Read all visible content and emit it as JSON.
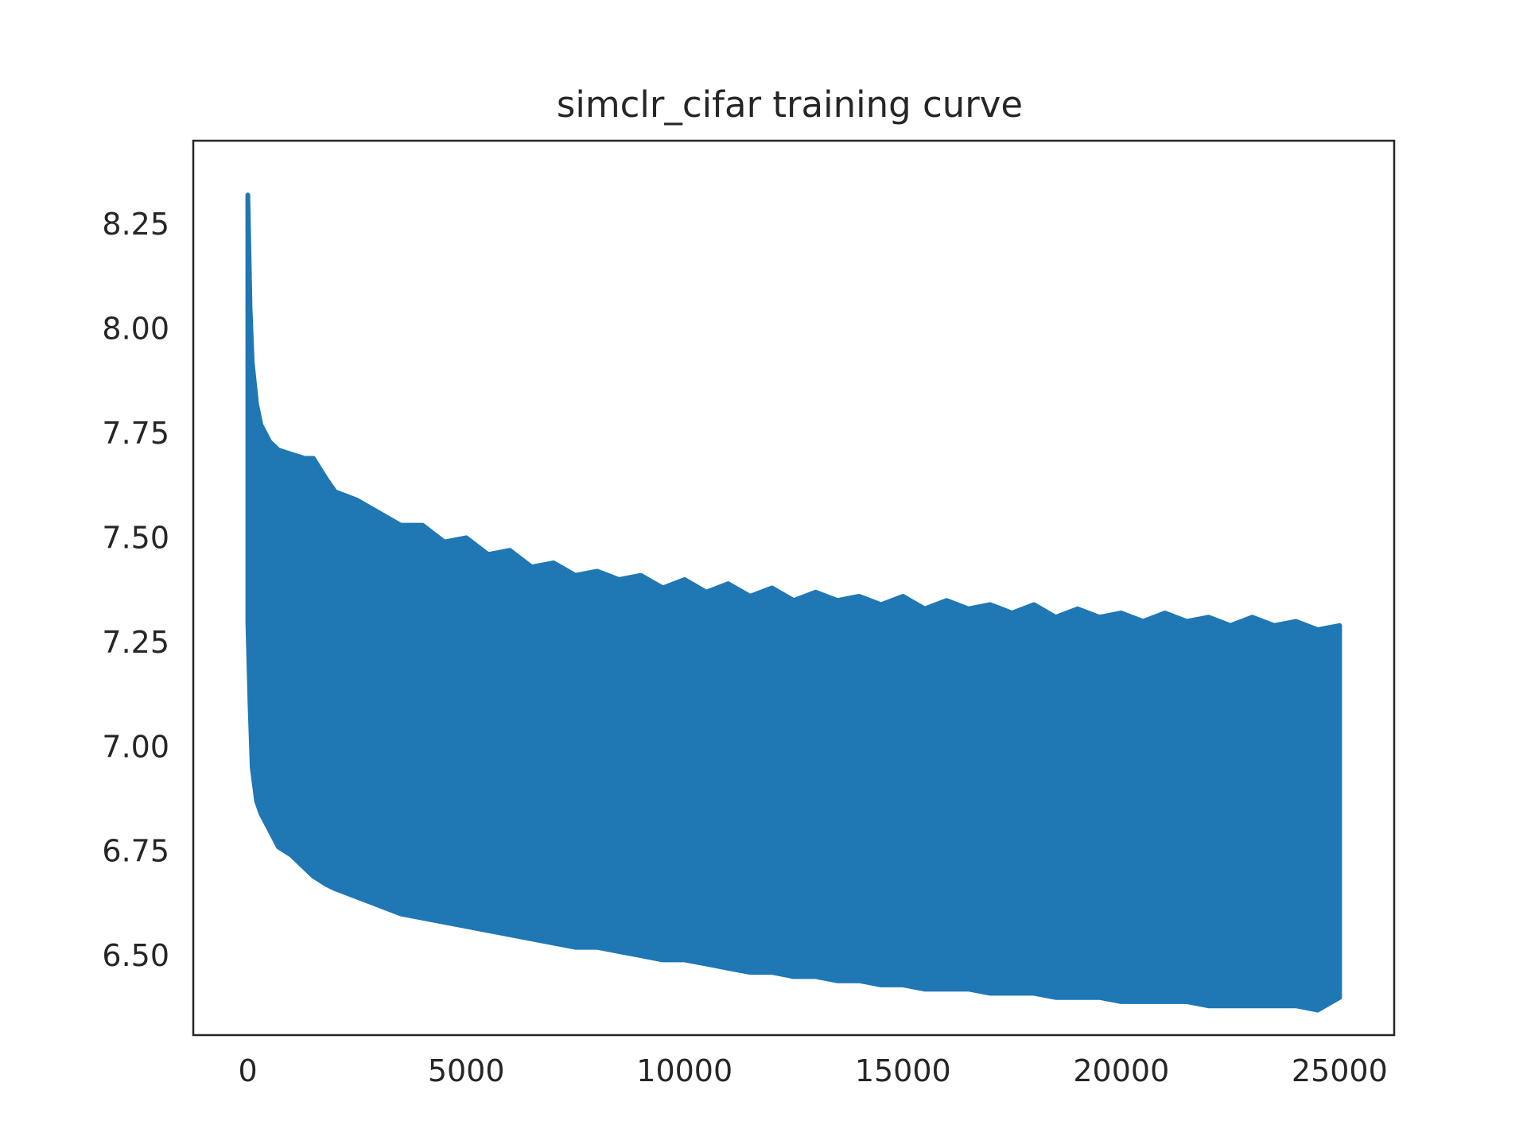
{
  "chart_data": {
    "type": "line",
    "title": "simclr_cifar training curve",
    "xlabel": "",
    "ylabel": "",
    "xlim": [
      -1250,
      26250
    ],
    "ylim": [
      6.31,
      8.45
    ],
    "xticks": [
      0,
      5000,
      10000,
      15000,
      20000,
      25000
    ],
    "xtick_labels": [
      "0",
      "5000",
      "10000",
      "15000",
      "20000",
      "25000"
    ],
    "yticks": [
      6.5,
      6.75,
      7.0,
      7.25,
      7.5,
      7.75,
      8.0,
      8.25
    ],
    "ytick_labels": [
      "6.50",
      "6.75",
      "7.00",
      "7.25",
      "7.50",
      "7.75",
      "8.00",
      "8.25"
    ],
    "grid": false,
    "legend": "none",
    "series": [
      {
        "color": "#1f77b4",
        "style": "dense oscillating loss curve filling band between lower and upper envelopes",
        "x": [
          0,
          50,
          100,
          200,
          300,
          500,
          700,
          1000,
          1300,
          1500,
          1800,
          2000,
          2500,
          3000,
          3500,
          4000,
          4500,
          5000,
          5500,
          6000,
          6500,
          7000,
          7500,
          8000,
          8500,
          9000,
          9500,
          10000,
          10500,
          11000,
          11500,
          12000,
          12500,
          13000,
          13500,
          14000,
          14500,
          15000,
          15500,
          16000,
          16500,
          17000,
          17500,
          18000,
          18500,
          19000,
          19500,
          20000,
          20500,
          21000,
          21500,
          22000,
          22500,
          23000,
          23500,
          24000,
          24500,
          25000
        ],
        "upper": [
          8.32,
          8.05,
          7.92,
          7.82,
          7.77,
          7.73,
          7.71,
          7.7,
          7.69,
          7.69,
          7.64,
          7.61,
          7.59,
          7.56,
          7.53,
          7.53,
          7.49,
          7.5,
          7.46,
          7.47,
          7.43,
          7.44,
          7.41,
          7.42,
          7.4,
          7.41,
          7.38,
          7.4,
          7.37,
          7.39,
          7.36,
          7.38,
          7.35,
          7.37,
          7.35,
          7.36,
          7.34,
          7.36,
          7.33,
          7.35,
          7.33,
          7.34,
          7.32,
          7.34,
          7.31,
          7.33,
          7.31,
          7.32,
          7.3,
          7.32,
          7.3,
          7.31,
          7.29,
          7.31,
          7.29,
          7.3,
          7.28,
          7.29
        ],
        "lower": [
          7.3,
          7.1,
          6.95,
          6.87,
          6.84,
          6.8,
          6.76,
          6.74,
          6.71,
          6.69,
          6.67,
          6.66,
          6.64,
          6.62,
          6.6,
          6.59,
          6.58,
          6.57,
          6.56,
          6.55,
          6.54,
          6.53,
          6.52,
          6.52,
          6.51,
          6.5,
          6.49,
          6.49,
          6.48,
          6.47,
          6.46,
          6.46,
          6.45,
          6.45,
          6.44,
          6.44,
          6.43,
          6.43,
          6.42,
          6.42,
          6.42,
          6.41,
          6.41,
          6.41,
          6.4,
          6.4,
          6.4,
          6.39,
          6.39,
          6.39,
          6.39,
          6.38,
          6.38,
          6.38,
          6.38,
          6.38,
          6.37,
          6.4
        ]
      }
    ]
  }
}
